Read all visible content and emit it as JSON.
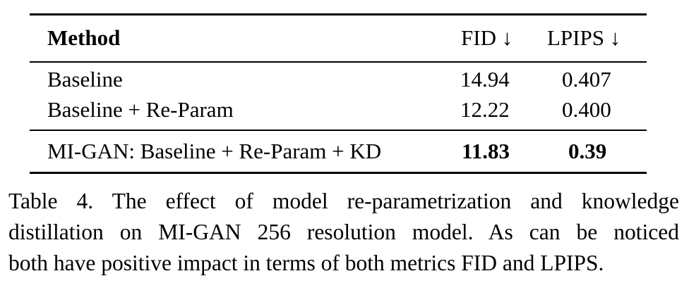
{
  "table": {
    "headers": [
      "Method",
      "FID ↓",
      "LPIPS ↓"
    ],
    "rows": [
      {
        "method": "Baseline",
        "fid": "14.94",
        "lpips": "0.407",
        "bold": false
      },
      {
        "method": "Baseline + Re-Param",
        "fid": "12.22",
        "lpips": "0.400",
        "bold": false
      },
      {
        "method": "MI-GAN: Baseline + Re-Param + KD",
        "fid": "11.83",
        "lpips": "0.39",
        "bold": true
      }
    ]
  },
  "caption": {
    "lines": [
      "Table 4. The effect of model re-parametrization and knowledge",
      "distillation on MI-GAN 256 resolution model. As can be noticed",
      "both have positive impact in terms of both metrics FID and LPIPS."
    ]
  }
}
